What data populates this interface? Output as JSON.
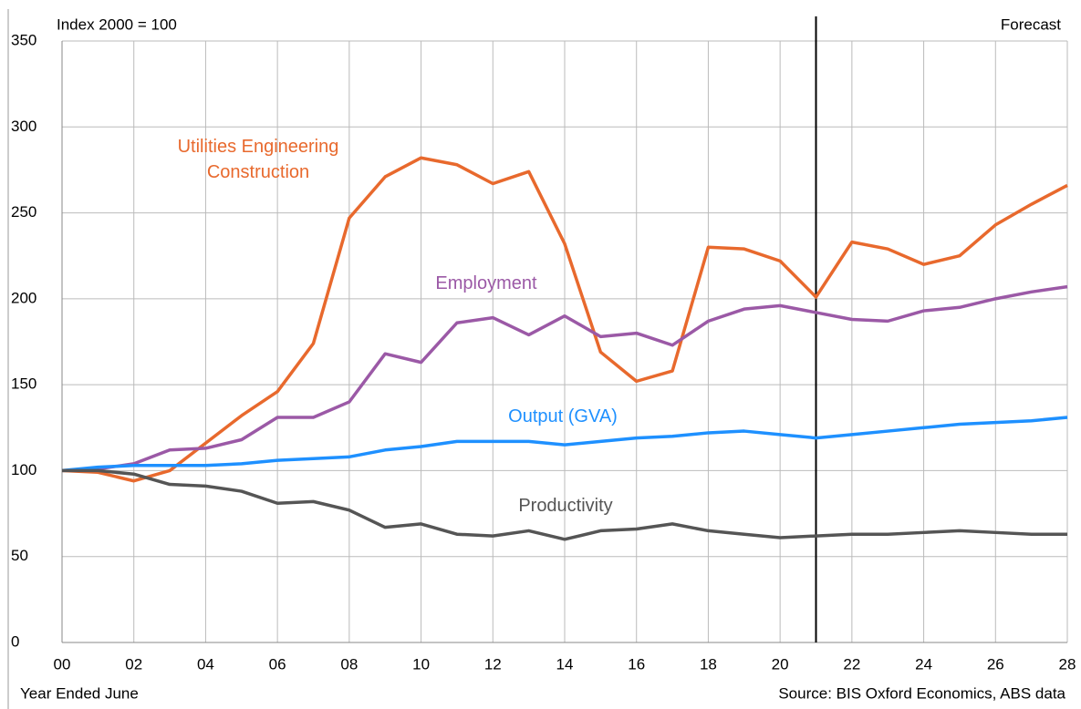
{
  "chart_data": {
    "type": "line",
    "title": "Index 2000 = 100",
    "annotations": {
      "forecast": "Forecast",
      "x_label": "Year Ended June",
      "source": "Source: BIS Oxford Economics, ABS data"
    },
    "forecast_start": 21,
    "x": [
      0,
      1,
      2,
      3,
      4,
      5,
      6,
      7,
      8,
      9,
      10,
      11,
      12,
      13,
      14,
      15,
      16,
      17,
      18,
      19,
      20,
      21,
      22,
      23,
      24,
      25,
      26,
      27,
      28
    ],
    "series": [
      {
        "name": "Utilities Engineering Construction",
        "color": "#e8692d",
        "values": [
          100,
          99,
          94,
          100,
          116,
          132,
          146,
          174,
          247,
          271,
          282,
          278,
          267,
          274,
          232,
          169,
          152,
          158,
          230,
          229,
          222,
          201,
          233,
          229,
          220,
          225,
          243,
          255,
          266
        ]
      },
      {
        "name": "Employment",
        "color": "#9b59a6",
        "values": [
          100,
          101,
          104,
          112,
          113,
          118,
          131,
          131,
          140,
          168,
          163,
          186,
          189,
          179,
          190,
          178,
          180,
          173,
          187,
          194,
          196,
          192,
          188,
          187,
          193,
          195,
          200,
          204,
          207
        ]
      },
      {
        "name": "Output (GVA)",
        "color": "#1e90ff",
        "values": [
          100,
          102,
          103,
          103,
          103,
          104,
          106,
          107,
          108,
          112,
          114,
          117,
          117,
          117,
          115,
          117,
          119,
          120,
          122,
          123,
          121,
          119,
          121,
          123,
          125,
          127,
          128,
          129,
          131
        ]
      },
      {
        "name": "Productivity",
        "color": "#555555",
        "values": [
          100,
          100,
          98,
          92,
          91,
          88,
          81,
          82,
          77,
          67,
          69,
          63,
          62,
          65,
          60,
          65,
          66,
          69,
          65,
          63,
          61,
          62,
          63,
          63,
          64,
          65,
          64,
          63,
          63
        ]
      }
    ],
    "xlim": [
      0,
      28
    ],
    "xticks": [
      {
        "value": 0,
        "label": "00"
      },
      {
        "value": 2,
        "label": "02"
      },
      {
        "value": 4,
        "label": "04"
      },
      {
        "value": 6,
        "label": "06"
      },
      {
        "value": 8,
        "label": "08"
      },
      {
        "value": 10,
        "label": "10"
      },
      {
        "value": 12,
        "label": "12"
      },
      {
        "value": 14,
        "label": "14"
      },
      {
        "value": 16,
        "label": "16"
      },
      {
        "value": 18,
        "label": "18"
      },
      {
        "value": 20,
        "label": "20"
      },
      {
        "value": 22,
        "label": "22"
      },
      {
        "value": 24,
        "label": "24"
      },
      {
        "value": 26,
        "label": "26"
      },
      {
        "value": 28,
        "label": "28"
      }
    ],
    "ylim": [
      0,
      350
    ],
    "yticks": [
      0,
      50,
      100,
      150,
      200,
      250,
      300,
      350
    ],
    "grid": true
  }
}
